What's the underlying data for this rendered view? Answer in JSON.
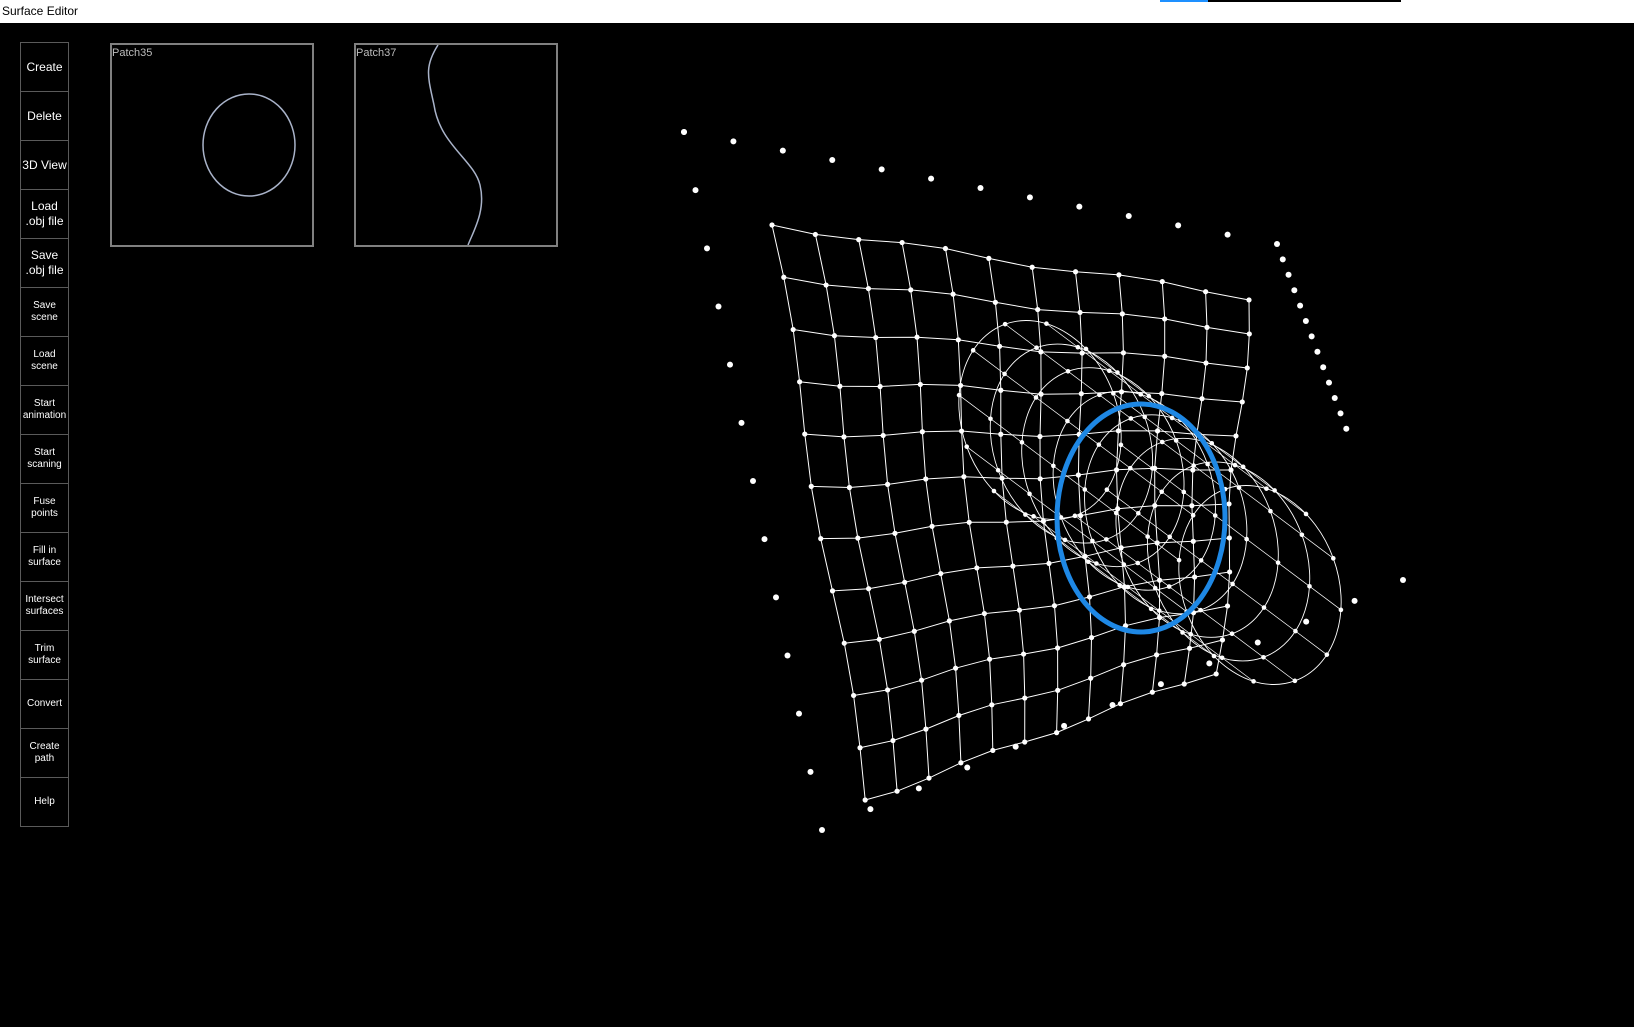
{
  "window": {
    "title": "Surface Editor",
    "progress_fraction": 0.2
  },
  "toolbar": {
    "buttons": [
      {
        "label": "Create"
      },
      {
        "label": "Delete"
      },
      {
        "label": "3D View"
      },
      {
        "label": "Load\n.obj file"
      },
      {
        "label": "Save\n.obj file"
      },
      {
        "label": "Save\nscene"
      },
      {
        "label": "Load\nscene"
      },
      {
        "label": "Start\nanimation"
      },
      {
        "label": "Start\nscaning"
      },
      {
        "label": "Fuse\npoints"
      },
      {
        "label": "Fill in\nsurface"
      },
      {
        "label": "Intersect\nsurfaces"
      },
      {
        "label": "Trim\nsurface"
      },
      {
        "label": "Convert"
      },
      {
        "label": "Create\npath"
      },
      {
        "label": "Help"
      }
    ]
  },
  "patches": [
    {
      "label": "Patch35"
    },
    {
      "label": "Patch37"
    }
  ],
  "colors": {
    "background": "#000000",
    "wireframe": "#ffffff",
    "intersection_curve": "#1e88e5",
    "patch_border": "#808080",
    "patch_curve": "#a9b3c9"
  }
}
